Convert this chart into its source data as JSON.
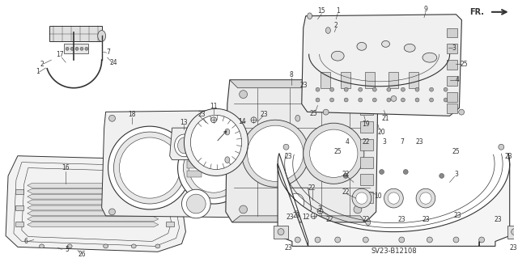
{
  "background_color": "#ffffff",
  "diagram_code": "SV23-B12108",
  "fr_label": "FR.",
  "line_color": "#333333",
  "label_fontsize": 5.5,
  "figsize": [
    6.4,
    3.19
  ],
  "dpi": 100
}
